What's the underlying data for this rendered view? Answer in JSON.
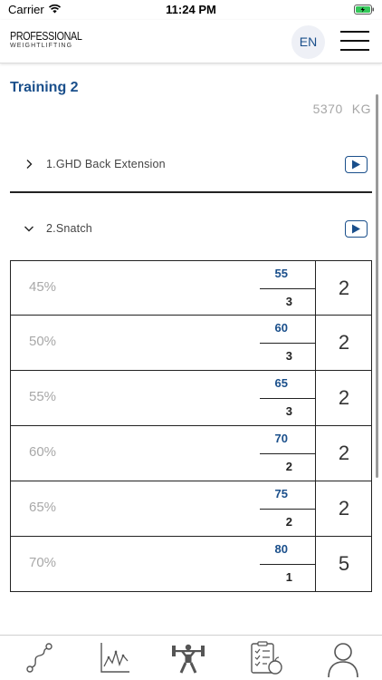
{
  "status_bar": {
    "carrier": "Carrier",
    "time": "11:24 PM"
  },
  "header": {
    "logo_line1": "PROFESSIONAL",
    "logo_line2": "WEIGHTLIFTING",
    "language": "EN"
  },
  "training": {
    "title": "Training 2",
    "total_value": "5370",
    "total_unit": "KG"
  },
  "exercises": [
    {
      "label": "1.GHD Back Extension",
      "expanded": false
    },
    {
      "label": "2.Snatch",
      "expanded": true
    }
  ],
  "sets": [
    {
      "percent": "45%",
      "weight": "55",
      "reps": "3",
      "sets": "2"
    },
    {
      "percent": "50%",
      "weight": "60",
      "reps": "3",
      "sets": "2"
    },
    {
      "percent": "55%",
      "weight": "65",
      "reps": "3",
      "sets": "2"
    },
    {
      "percent": "60%",
      "weight": "70",
      "reps": "2",
      "sets": "2"
    },
    {
      "percent": "65%",
      "weight": "75",
      "reps": "2",
      "sets": "2"
    },
    {
      "percent": "70%",
      "weight": "80",
      "reps": "1",
      "sets": "5"
    }
  ],
  "colors": {
    "accent": "#1a4f8b",
    "muted": "#a8a8a8"
  },
  "tabs": [
    {
      "icon": "route-icon"
    },
    {
      "icon": "line-chart-icon"
    },
    {
      "icon": "weightlifter-icon"
    },
    {
      "icon": "nutrition-checklist-icon"
    },
    {
      "icon": "user-profile-icon"
    }
  ]
}
